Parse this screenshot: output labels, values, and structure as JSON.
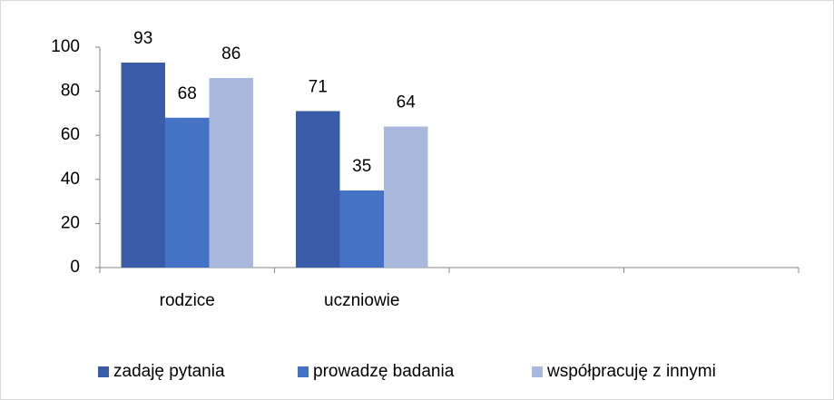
{
  "chart_data": {
    "type": "bar",
    "categories": [
      "rodzice",
      "uczniowie",
      null,
      null
    ],
    "series": [
      {
        "name": "zadaję pytania",
        "color": "#3a5ca8",
        "values": [
          93,
          71,
          null,
          null
        ]
      },
      {
        "name": "prowadzę badania",
        "color": "#4472c4",
        "values": [
          68,
          35,
          null,
          null
        ]
      },
      {
        "name": "współpracuję z innymi",
        "color": "#a9b9de",
        "values": [
          86,
          64,
          null,
          null
        ]
      }
    ],
    "ylim": [
      0,
      100
    ],
    "yticks": [
      0,
      20,
      40,
      60,
      80,
      100
    ],
    "legend": "bottom"
  }
}
